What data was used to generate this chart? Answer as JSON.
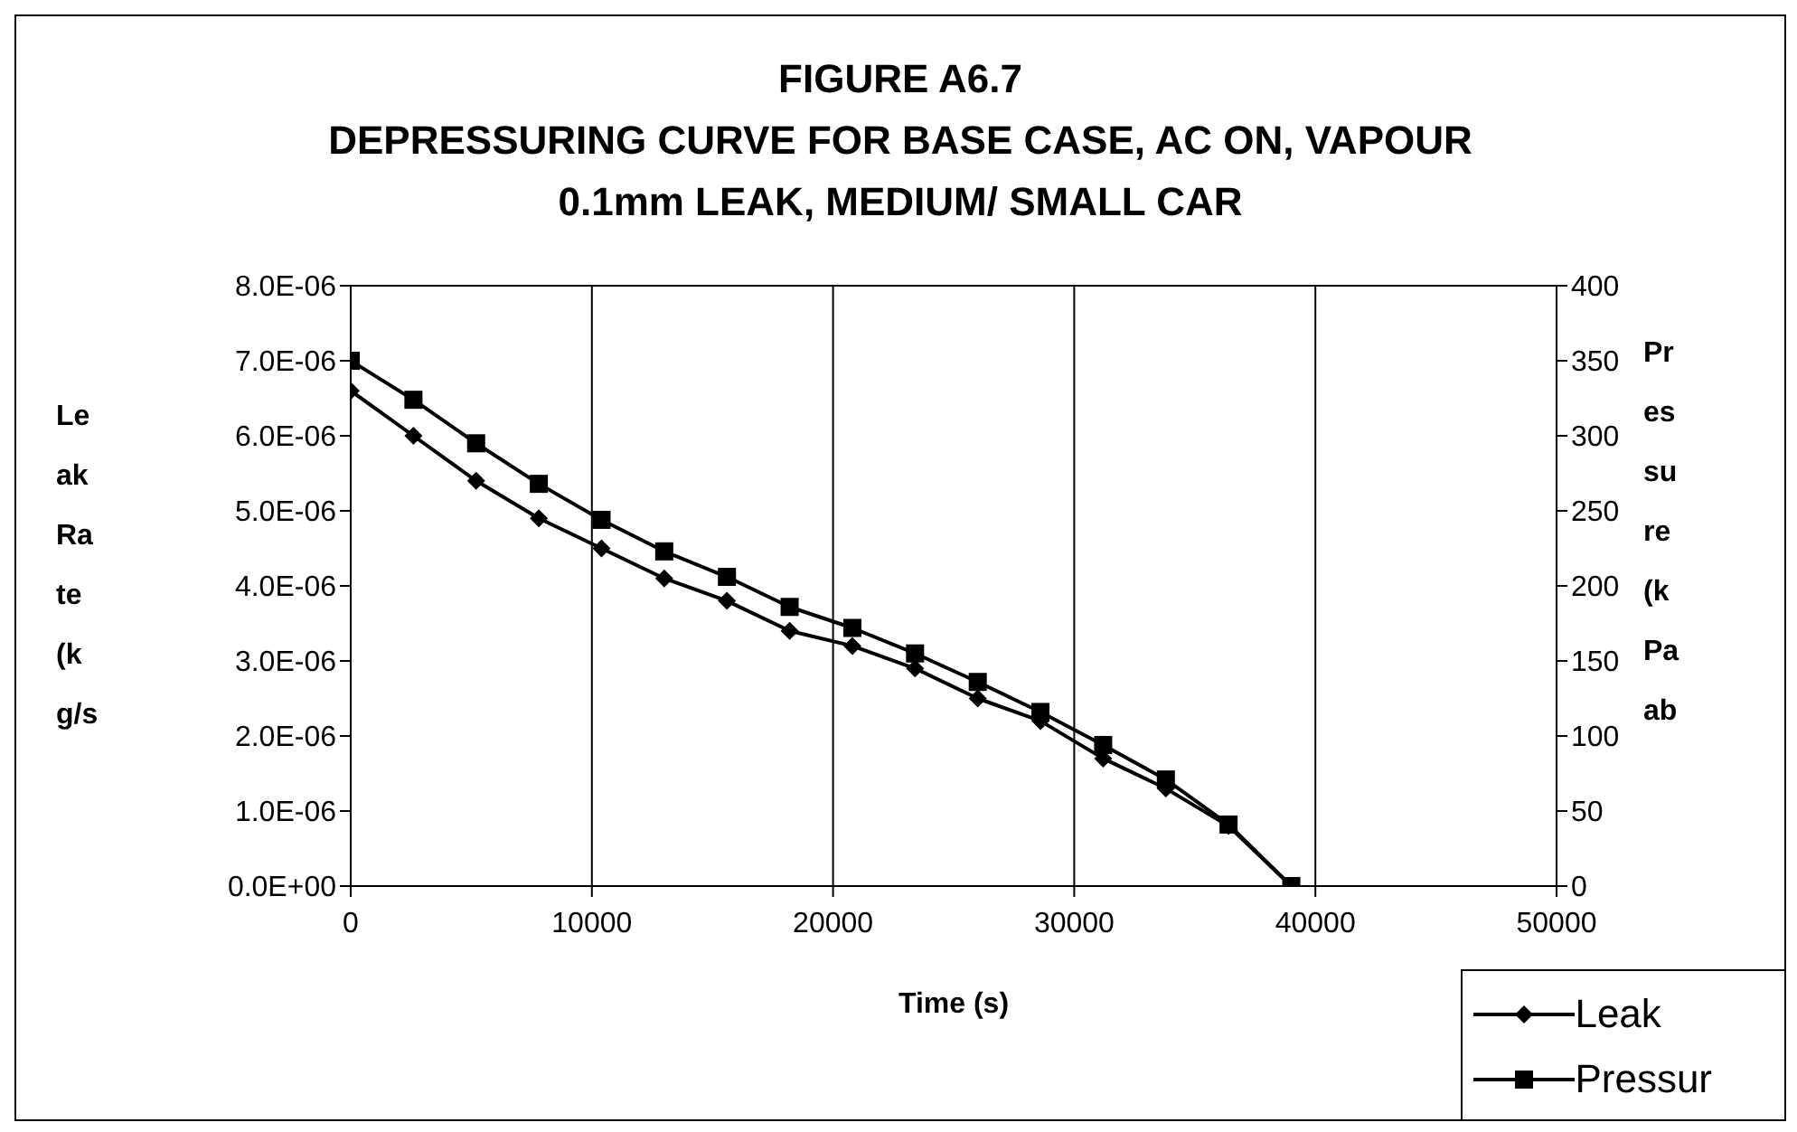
{
  "chart_data": {
    "type": "line",
    "title": "FIGURE A6.7\nDEPRESSURING CURVE FOR BASE CASE, AC ON, VAPOUR\n0.1mm LEAK, MEDIUM/ SMALL CAR",
    "xlabel": "Time (s)",
    "ylabel": "Leak Rate (kg/s",
    "y2label": "Pressure (kPa ab",
    "x": [
      0,
      2600,
      5200,
      7800,
      10400,
      13000,
      15600,
      18200,
      20800,
      23400,
      26000,
      28600,
      31200,
      33800,
      36400,
      39000
    ],
    "series": [
      {
        "name": "Leak",
        "color": "#000000",
        "marker": "diamond",
        "values": [
          6.6e-06,
          6e-06,
          5.4e-06,
          4.9e-06,
          4.5e-06,
          4.1e-06,
          3.8e-06,
          3.4e-06,
          3.2e-06,
          2.9e-06,
          2.5e-06,
          2.2e-06,
          1.7e-06,
          1.3e-06,
          8e-07,
          0
        ]
      },
      {
        "name": "Pressur",
        "color": "#000000",
        "marker": "square",
        "axis": "y2",
        "values": [
          350,
          324,
          295,
          268,
          244,
          223,
          206,
          186,
          172,
          155,
          136,
          116,
          94,
          71,
          41,
          0
        ]
      }
    ],
    "xlim": [
      0,
      50000
    ],
    "xticks": [
      0,
      10000,
      20000,
      30000,
      40000,
      50000
    ],
    "ylim": [
      0,
      8e-06
    ],
    "yticks": [
      {
        "value": 0,
        "label": "0.0E+00"
      },
      {
        "value": 1e-06,
        "label": "1.0E-06"
      },
      {
        "value": 2e-06,
        "label": "2.0E-06"
      },
      {
        "value": 3e-06,
        "label": "3.0E-06"
      },
      {
        "value": 4e-06,
        "label": "4.0E-06"
      },
      {
        "value": 5e-06,
        "label": "5.0E-06"
      },
      {
        "value": 6e-06,
        "label": "6.0E-06"
      },
      {
        "value": 7e-06,
        "label": "7.0E-06"
      },
      {
        "value": 8e-06,
        "label": "8.0E-06"
      }
    ],
    "y2lim": [
      0,
      400
    ],
    "y2ticks": [
      0,
      50,
      100,
      150,
      200,
      250,
      300,
      350,
      400
    ],
    "grid": true,
    "legend": "bottom right",
    "line_style": "solid"
  }
}
